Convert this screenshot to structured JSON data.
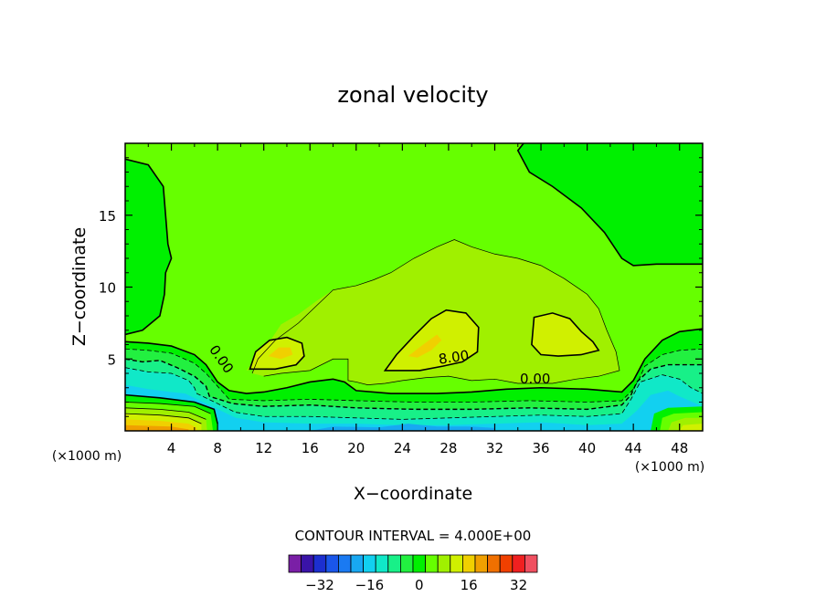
{
  "chart_data": {
    "type": "heatmap",
    "subtype": "filled-contour",
    "title": "zonal velocity",
    "xlabel": "X−coordinate",
    "ylabel": "Z−coordinate",
    "x_unit_label": "(×1000 m)",
    "xlim": [
      0,
      50
    ],
    "ylim": [
      0,
      20
    ],
    "x_ticks": [
      4,
      8,
      12,
      16,
      20,
      24,
      28,
      32,
      36,
      40,
      44,
      48
    ],
    "y_ticks": [
      5,
      10,
      15
    ],
    "contour_interval_text": "CONTOUR INTERVAL = 4.000E+00",
    "contour_labels": [
      {
        "text": "0.00",
        "x": 8.0,
        "y": 4.8,
        "angle": 55
      },
      {
        "text": "8.00",
        "x": 28.5,
        "y": 4.8,
        "angle": -8
      },
      {
        "text": "0.00",
        "x": 35.5,
        "y": 3.3,
        "angle": 0
      }
    ],
    "colorbar": {
      "levels": [
        -40,
        -36,
        -32,
        -28,
        -24,
        -20,
        -16,
        -12,
        -8,
        -4,
        0,
        4,
        8,
        12,
        16,
        20,
        24,
        28,
        32,
        36,
        40
      ],
      "tick_labels": [
        "−32",
        "−16",
        "0",
        "16",
        "32"
      ],
      "tick_values": [
        -32,
        -16,
        0,
        16,
        32
      ],
      "colors": [
        "#7a1fa6",
        "#3a13a8",
        "#1c2fd0",
        "#1a56ea",
        "#1a7af2",
        "#18a8f2",
        "#12d0f0",
        "#10e8c8",
        "#18f088",
        "#22f040",
        "#00f000",
        "#66ff00",
        "#a0f000",
        "#d0f000",
        "#f0d000",
        "#f0a000",
        "#f07000",
        "#f04000",
        "#f02020",
        "#f05060",
        "#f09090"
      ]
    },
    "regions": {
      "background": 4,
      "above_8_band": 8,
      "maxima_above_12": [
        12,
        16
      ],
      "near_surface_negative": [
        -4,
        -8,
        -12,
        -16
      ],
      "surface_positive_corners": [
        4,
        8,
        12,
        16,
        20
      ]
    }
  }
}
